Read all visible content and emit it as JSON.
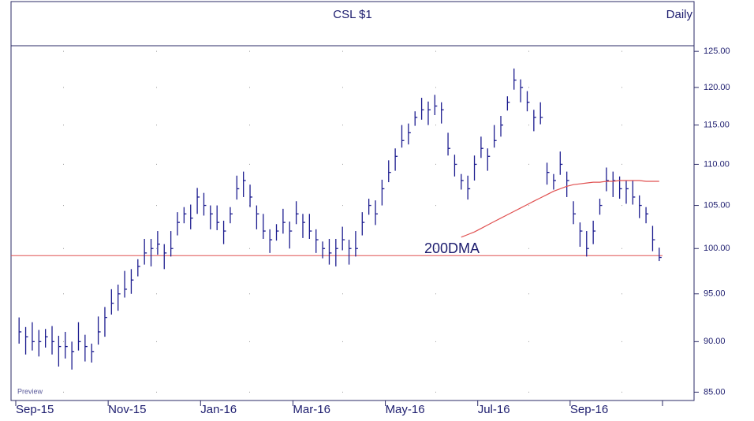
{
  "chart_data": {
    "type": "ohlc",
    "title": "CSL  $1",
    "subtitle": "Daily",
    "watermark": "Preview",
    "annotation": "200DMA",
    "categories": [
      "Sep-15",
      null,
      null,
      null,
      null,
      null,
      null,
      null,
      null,
      null,
      null,
      null,
      null,
      null,
      "Nov-15",
      null,
      null,
      null,
      null,
      null,
      null,
      null,
      null,
      null,
      null,
      null,
      null,
      null,
      "Jan-16",
      null,
      null,
      null,
      null,
      null,
      null,
      null,
      null,
      null,
      null,
      null,
      null,
      null,
      "Mar-16",
      null,
      null,
      null,
      null,
      null,
      null,
      null,
      null,
      null,
      null,
      null,
      null,
      null,
      "May-16",
      null,
      null,
      null,
      null,
      null,
      null,
      null,
      null,
      null,
      null,
      null,
      null,
      null,
      "Jul-16",
      null,
      null,
      null,
      null,
      null,
      null,
      null,
      null,
      null,
      null,
      null,
      null,
      null,
      "Sep-16",
      null,
      null,
      null,
      null,
      null,
      null,
      null,
      null,
      null,
      null,
      null,
      null,
      null
    ],
    "color": "#1c1c8f",
    "high": [
      92.5,
      91.5,
      92,
      91.2,
      91.3,
      91.6,
      90.6,
      91,
      90,
      92,
      90.7,
      89.8,
      92.6,
      93.6,
      95.5,
      96,
      97.5,
      97.7,
      98.8,
      101.1,
      101.1,
      102,
      100.5,
      102,
      104.2,
      104.8,
      105.1,
      107.1,
      106.5,
      105,
      105,
      103.2,
      104.8,
      108.6,
      109.1,
      107.5,
      105,
      104,
      102.2,
      102.8,
      104.6,
      103.1,
      105.5,
      104,
      104,
      102.2,
      100.8,
      101.1,
      101.1,
      102.5,
      101,
      102,
      104.2,
      105.8,
      105.6,
      108.1,
      110.5,
      112,
      115,
      115.2,
      116.8,
      118.6,
      118.1,
      119,
      118,
      114,
      111.2,
      108.8,
      108.6,
      111.1,
      113.5,
      112,
      115,
      116.2,
      118.8,
      122.6,
      121.1,
      119.5,
      117,
      118,
      110.2,
      108.8,
      111.6,
      109.1,
      105.5,
      103,
      102,
      103.2,
      105.8,
      109.6,
      109.1,
      108.5,
      108,
      108,
      106.2,
      104.8,
      102.6,
      100.1
    ],
    "low": [
      89.8,
      88.7,
      89.1,
      88.5,
      89.4,
      88.7,
      87.5,
      88.3,
      87.2,
      89.1,
      88,
      87.9,
      89.7,
      90.5,
      92.8,
      93.2,
      94.6,
      95,
      96.9,
      98.2,
      98,
      99.3,
      97.7,
      99.1,
      101.5,
      102.9,
      102.2,
      104,
      103.8,
      102.2,
      102.1,
      100.5,
      102.9,
      105.7,
      106,
      104.8,
      102.2,
      101.1,
      99.5,
      100.9,
      101.7,
      100,
      102.8,
      101.2,
      101.1,
      99.5,
      98.9,
      98.2,
      98,
      99.8,
      98.2,
      99.1,
      101.5,
      103.9,
      102.7,
      105,
      107.8,
      109.2,
      112.1,
      112.5,
      114.9,
      115.7,
      115,
      116.3,
      115.2,
      111.1,
      108.5,
      106.9,
      105.7,
      108,
      110.8,
      109.2,
      112.1,
      113.5,
      116.9,
      119.7,
      118,
      116.8,
      114.2,
      115.1,
      107.5,
      106.9,
      108.7,
      106,
      102.8,
      100.2,
      99.1,
      100.5,
      103.9,
      106.7,
      106,
      105.8,
      105.2,
      105.1,
      103.5,
      102.9,
      99.7,
      98.6
    ],
    "close": [
      91,
      90.5,
      90,
      90,
      90.5,
      90,
      89.5,
      89.5,
      89,
      90,
      89.5,
      89,
      91,
      92.5,
      94,
      95,
      95.5,
      96.5,
      98,
      99.5,
      100,
      100.5,
      99.5,
      100,
      103,
      104,
      103.5,
      106,
      105,
      104,
      103,
      102,
      104,
      107,
      108,
      106,
      104,
      102,
      101,
      102,
      103,
      102,
      104,
      103,
      102,
      101,
      100,
      99.5,
      100,
      101,
      100,
      100,
      103,
      105,
      104,
      107,
      109,
      111,
      113,
      114,
      116,
      117,
      117,
      117.5,
      117,
      112,
      110,
      108,
      107,
      110,
      112,
      111,
      113,
      115,
      118,
      121,
      120,
      118,
      116,
      116,
      109,
      108,
      110,
      108,
      104,
      102,
      100,
      102,
      105,
      108,
      108,
      107,
      107,
      106,
      105,
      104,
      101,
      99
    ],
    "ma": {
      "color": "#e05050",
      "values": [
        null,
        null,
        null,
        null,
        null,
        null,
        null,
        null,
        null,
        null,
        null,
        null,
        null,
        null,
        null,
        null,
        null,
        null,
        null,
        null,
        null,
        null,
        null,
        null,
        null,
        null,
        null,
        null,
        null,
        null,
        null,
        null,
        null,
        null,
        null,
        null,
        null,
        null,
        null,
        null,
        null,
        null,
        null,
        null,
        null,
        null,
        null,
        null,
        null,
        null,
        null,
        null,
        null,
        null,
        null,
        null,
        null,
        null,
        null,
        null,
        null,
        null,
        null,
        null,
        null,
        null,
        null,
        101.3,
        101.6,
        101.9,
        102.3,
        102.7,
        103.1,
        103.5,
        103.9,
        104.3,
        104.7,
        105.1,
        105.5,
        105.9,
        106.3,
        106.7,
        107.0,
        107.3,
        107.5,
        107.6,
        107.7,
        107.8,
        107.8,
        107.9,
        107.9,
        108.0,
        108.0,
        108.0,
        108.0,
        107.9,
        107.9,
        107.9
      ]
    },
    "hline": 99.2,
    "log_scale": true,
    "grid": true,
    "ylim": [
      84.2,
      125.8
    ],
    "yticks": [
      {
        "value": 85,
        "label": "85.00"
      },
      {
        "value": 90,
        "label": "90.00"
      },
      {
        "value": 95,
        "label": "95.00"
      },
      {
        "value": 100,
        "label": "100.00"
      },
      {
        "value": 105,
        "label": "105.00"
      },
      {
        "value": 110,
        "label": "110.00"
      },
      {
        "value": 115,
        "label": "115.00"
      },
      {
        "value": 120,
        "label": "120.00"
      },
      {
        "value": 125,
        "label": "125.00"
      }
    ]
  }
}
